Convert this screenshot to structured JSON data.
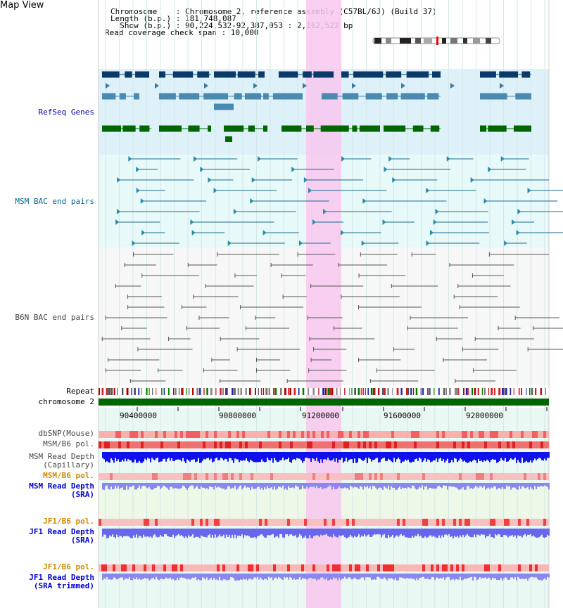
{
  "title": "Map View",
  "header": {
    "chromosome_line": "Chromosome    : Chromosome 2, reference assembly (C57BL/6J) (Build 37)",
    "length_line": "Length (b.p.) : 181,748,087",
    "show_line": "  Show (b.p.) : 90,224,532-92,387,053 : 2,162,522 bp",
    "span_line": "Read coverage check span : 10,000"
  },
  "tracks": {
    "refseq": "RefSeq Genes",
    "msm_bac": "MSM BAC end pairs",
    "b6n_bac": "B6N BAC end pairs",
    "repeat": "Repeat",
    "chromosome": "chromosome 2",
    "dbsnp": "dbSNP(Mouse)",
    "msm_pol": "MSM/B6 pol.",
    "msm_depth_cap": "MSM Read Depth\n(Capillary)",
    "msm_pol_sra": "MSM/B6 pol.",
    "msm_depth_sra": "MSM Read Depth\n(SRA)",
    "jf1_pol": "JF1/B6 pol.",
    "jf1_depth_sra": "JF1 Read Depth\n(SRA)",
    "jf1_pol2": "JF1/B6 pol.",
    "jf1_depth_trim": "JF1 Read Depth\n(SRA trimmed)"
  },
  "axis": {
    "ticks": [
      "90400000",
      "90800000",
      "91200000",
      "91600000",
      "92000000"
    ]
  },
  "colors": {
    "refseq_label": "#0000aa",
    "msm_label": "#006688",
    "b6n_label": "#444444",
    "orange_label": "#cc8800",
    "blue_label": "#0000cc",
    "highlight": "#f8c8ee"
  }
}
